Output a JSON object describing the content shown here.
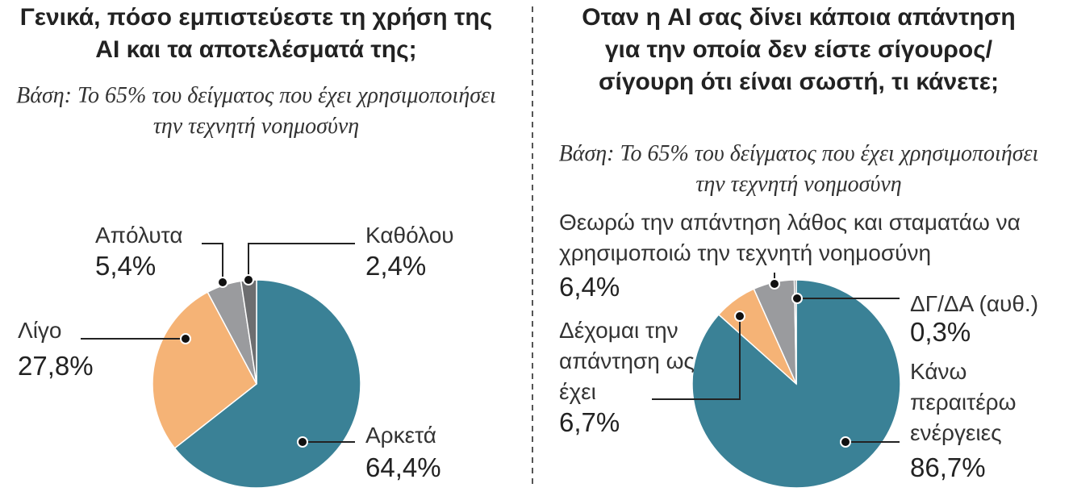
{
  "chart_data": [
    {
      "type": "pie",
      "title": "Γενικά, πόσο εμπιστεύεστε τη χρήση της AI και τα αποτελέσματά της;",
      "subtitle": "Βάση: Το 65% του δείγματος που έχει χρησιμοποιήσει την τεχνητή νοημοσύνη",
      "categories": [
        "Αρκετά",
        "Λίγο",
        "Απόλυτα",
        "Καθόλου"
      ],
      "values": [
        64.4,
        27.8,
        5.4,
        2.4
      ],
      "value_labels": [
        "64,4%",
        "27,8%",
        "5,4%",
        "2,4%"
      ],
      "colors": [
        "#3a8196",
        "#f5b376",
        "#9a9b9e",
        "#6d6e70"
      ]
    },
    {
      "type": "pie",
      "title": "Οταν η AI σας δίνει κάποια απάντηση για την οποία δεν είστε σίγουρος/σίγουρη ότι είναι σωστή, τι κάνετε;",
      "subtitle": "Βάση: Το 65% του δείγματος που έχει χρησιμοποιήσει την τεχνητή νοημοσύνη",
      "categories": [
        "Κάνω περαιτέρω ενέργειες",
        "Δέχομαι την απάντηση ως έχει",
        "Θεωρώ την απάντηση λάθος και σταματάω να χρησιμοποιώ την τεχνητή νοημοσύνη",
        "ΔΓ/ΔΑ (αυθ.)"
      ],
      "values": [
        86.7,
        6.7,
        6.4,
        0.3
      ],
      "value_labels": [
        "86,7%",
        "6,7%",
        "6,4%",
        "0,3%"
      ],
      "colors": [
        "#3a8196",
        "#f5b376",
        "#9a9b9e",
        "#6d6e70"
      ]
    }
  ]
}
